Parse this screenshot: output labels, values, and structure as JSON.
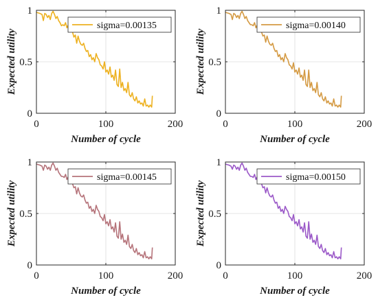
{
  "chart_data": [
    {
      "type": "line",
      "xlabel": "Number of cycle",
      "ylabel": "Expected utility",
      "xlim": [
        0,
        200
      ],
      "ylim": [
        0,
        1
      ],
      "xticks": [
        "0",
        "100",
        "200"
      ],
      "yticks": [
        "0",
        "0.5",
        "1"
      ],
      "grid": true,
      "legend_position": "top-right",
      "series": [
        {
          "name": "sigma=0.00135",
          "color": "#EDB120",
          "x": [
            0,
            5,
            8,
            10,
            12,
            14,
            16,
            18,
            20,
            22,
            24,
            26,
            28,
            30,
            32,
            34,
            36,
            38,
            40,
            42,
            44,
            46,
            48,
            50,
            52,
            54,
            56,
            58,
            60,
            62,
            64,
            66,
            68,
            70,
            72,
            74,
            76,
            78,
            80,
            82,
            84,
            86,
            88,
            90,
            92,
            94,
            96,
            98,
            100,
            102,
            104,
            106,
            108,
            110,
            112,
            114,
            116,
            118,
            120,
            122,
            124,
            126,
            128,
            130,
            132,
            134,
            136,
            138,
            140,
            142,
            144,
            146,
            148,
            150,
            152,
            154,
            156,
            158,
            160,
            162,
            164,
            166,
            167
          ],
          "y": [
            0.98,
            0.97,
            0.96,
            0.9,
            0.97,
            0.96,
            0.93,
            0.95,
            0.91,
            0.97,
            0.99,
            0.96,
            0.92,
            0.94,
            0.9,
            0.88,
            0.85,
            0.86,
            0.85,
            0.88,
            0.83,
            0.86,
            0.8,
            0.82,
            0.79,
            0.74,
            0.76,
            0.68,
            0.75,
            0.7,
            0.67,
            0.66,
            0.68,
            0.63,
            0.6,
            0.61,
            0.55,
            0.57,
            0.52,
            0.54,
            0.5,
            0.58,
            0.54,
            0.52,
            0.47,
            0.46,
            0.43,
            0.5,
            0.4,
            0.42,
            0.38,
            0.45,
            0.35,
            0.37,
            0.32,
            0.42,
            0.28,
            0.26,
            0.43,
            0.25,
            0.3,
            0.22,
            0.24,
            0.2,
            0.3,
            0.18,
            0.16,
            0.2,
            0.14,
            0.12,
            0.16,
            0.1,
            0.12,
            0.09,
            0.1,
            0.07,
            0.14,
            0.07,
            0.08,
            0.06,
            0.08,
            0.06,
            0.17
          ]
        }
      ]
    },
    {
      "type": "line",
      "xlabel": "Number of cycle",
      "ylabel": "Expected utility",
      "xlim": [
        0,
        200
      ],
      "ylim": [
        0,
        1
      ],
      "xticks": [
        "0",
        "100",
        "200"
      ],
      "yticks": [
        "0",
        "0.5",
        "1"
      ],
      "grid": true,
      "legend_position": "top-right",
      "series": [
        {
          "name": "sigma=0.00140",
          "color": "#D49A43",
          "x": [
            0,
            5,
            8,
            10,
            12,
            14,
            16,
            18,
            20,
            22,
            24,
            26,
            28,
            30,
            32,
            34,
            36,
            38,
            40,
            42,
            44,
            46,
            48,
            50,
            52,
            54,
            56,
            58,
            60,
            62,
            64,
            66,
            68,
            70,
            72,
            74,
            76,
            78,
            80,
            82,
            84,
            86,
            88,
            90,
            92,
            94,
            96,
            98,
            100,
            102,
            104,
            106,
            108,
            110,
            112,
            114,
            116,
            118,
            120,
            122,
            124,
            126,
            128,
            130,
            132,
            134,
            136,
            138,
            140,
            142,
            144,
            146,
            148,
            150,
            152,
            154,
            156,
            158,
            160,
            162,
            164,
            166,
            167
          ],
          "y": [
            0.98,
            0.97,
            0.96,
            0.91,
            0.97,
            0.96,
            0.93,
            0.95,
            0.92,
            0.97,
            0.99,
            0.96,
            0.92,
            0.94,
            0.9,
            0.88,
            0.86,
            0.86,
            0.85,
            0.88,
            0.83,
            0.86,
            0.8,
            0.82,
            0.79,
            0.75,
            0.76,
            0.69,
            0.75,
            0.7,
            0.67,
            0.66,
            0.68,
            0.63,
            0.6,
            0.61,
            0.55,
            0.57,
            0.52,
            0.54,
            0.5,
            0.58,
            0.54,
            0.52,
            0.47,
            0.46,
            0.43,
            0.49,
            0.4,
            0.42,
            0.38,
            0.44,
            0.35,
            0.37,
            0.32,
            0.42,
            0.28,
            0.26,
            0.42,
            0.25,
            0.3,
            0.22,
            0.24,
            0.2,
            0.3,
            0.18,
            0.16,
            0.2,
            0.14,
            0.12,
            0.16,
            0.1,
            0.12,
            0.09,
            0.1,
            0.07,
            0.14,
            0.07,
            0.08,
            0.06,
            0.08,
            0.06,
            0.17
          ]
        }
      ]
    },
    {
      "type": "line",
      "xlabel": "Number of cycle",
      "ylabel": "Expected utility",
      "xlim": [
        0,
        200
      ],
      "ylim": [
        0,
        1
      ],
      "xticks": [
        "0",
        "100",
        "200"
      ],
      "yticks": [
        "0",
        "0.5",
        "1"
      ],
      "grid": true,
      "legend_position": "top-right",
      "series": [
        {
          "name": "sigma=0.00145",
          "color": "#B5737A",
          "x": [
            0,
            5,
            8,
            10,
            12,
            14,
            16,
            18,
            20,
            22,
            24,
            26,
            28,
            30,
            32,
            34,
            36,
            38,
            40,
            42,
            44,
            46,
            48,
            50,
            52,
            54,
            56,
            58,
            60,
            62,
            64,
            66,
            68,
            70,
            72,
            74,
            76,
            78,
            80,
            82,
            84,
            86,
            88,
            90,
            92,
            94,
            96,
            98,
            100,
            102,
            104,
            106,
            108,
            110,
            112,
            114,
            116,
            118,
            120,
            122,
            124,
            126,
            128,
            130,
            132,
            134,
            136,
            138,
            140,
            142,
            144,
            146,
            148,
            150,
            152,
            154,
            156,
            158,
            160,
            162,
            164,
            166,
            167
          ],
          "y": [
            0.98,
            0.97,
            0.96,
            0.92,
            0.97,
            0.96,
            0.93,
            0.95,
            0.92,
            0.97,
            0.99,
            0.96,
            0.92,
            0.94,
            0.9,
            0.88,
            0.86,
            0.86,
            0.85,
            0.88,
            0.83,
            0.86,
            0.8,
            0.82,
            0.79,
            0.75,
            0.76,
            0.69,
            0.75,
            0.7,
            0.67,
            0.66,
            0.68,
            0.63,
            0.6,
            0.61,
            0.55,
            0.57,
            0.52,
            0.54,
            0.5,
            0.58,
            0.54,
            0.52,
            0.47,
            0.46,
            0.43,
            0.49,
            0.4,
            0.42,
            0.38,
            0.44,
            0.35,
            0.37,
            0.32,
            0.41,
            0.28,
            0.26,
            0.42,
            0.25,
            0.3,
            0.22,
            0.24,
            0.2,
            0.29,
            0.18,
            0.16,
            0.2,
            0.14,
            0.12,
            0.16,
            0.1,
            0.12,
            0.09,
            0.1,
            0.07,
            0.13,
            0.07,
            0.08,
            0.06,
            0.08,
            0.06,
            0.17
          ]
        }
      ]
    },
    {
      "type": "line",
      "xlabel": "Number of cycle",
      "ylabel": "Expected utility",
      "xlim": [
        0,
        200
      ],
      "ylim": [
        0,
        1
      ],
      "xticks": [
        "0",
        "100",
        "200"
      ],
      "yticks": [
        "0",
        "0.5",
        "1"
      ],
      "grid": true,
      "legend_position": "top-right",
      "series": [
        {
          "name": "sigma=0.00150",
          "color": "#9B59C8",
          "x": [
            0,
            5,
            8,
            10,
            12,
            14,
            16,
            18,
            20,
            22,
            24,
            26,
            28,
            30,
            32,
            34,
            36,
            38,
            40,
            42,
            44,
            46,
            48,
            50,
            52,
            54,
            56,
            58,
            60,
            62,
            64,
            66,
            68,
            70,
            72,
            74,
            76,
            78,
            80,
            82,
            84,
            86,
            88,
            90,
            92,
            94,
            96,
            98,
            100,
            102,
            104,
            106,
            108,
            110,
            112,
            114,
            116,
            118,
            120,
            122,
            124,
            126,
            128,
            130,
            132,
            134,
            136,
            138,
            140,
            142,
            144,
            146,
            148,
            150,
            152,
            154,
            156,
            158,
            160,
            162,
            164,
            166,
            167
          ],
          "y": [
            0.98,
            0.97,
            0.96,
            0.93,
            0.97,
            0.96,
            0.93,
            0.95,
            0.92,
            0.97,
            0.99,
            0.96,
            0.92,
            0.94,
            0.9,
            0.88,
            0.86,
            0.86,
            0.85,
            0.88,
            0.83,
            0.86,
            0.8,
            0.82,
            0.79,
            0.75,
            0.76,
            0.7,
            0.75,
            0.7,
            0.67,
            0.66,
            0.68,
            0.63,
            0.6,
            0.61,
            0.55,
            0.57,
            0.52,
            0.54,
            0.5,
            0.57,
            0.54,
            0.52,
            0.47,
            0.46,
            0.43,
            0.49,
            0.4,
            0.42,
            0.38,
            0.44,
            0.35,
            0.37,
            0.32,
            0.41,
            0.28,
            0.26,
            0.42,
            0.25,
            0.3,
            0.22,
            0.24,
            0.2,
            0.29,
            0.18,
            0.16,
            0.2,
            0.14,
            0.12,
            0.16,
            0.1,
            0.12,
            0.09,
            0.1,
            0.07,
            0.13,
            0.07,
            0.08,
            0.06,
            0.08,
            0.06,
            0.17
          ]
        }
      ]
    }
  ]
}
